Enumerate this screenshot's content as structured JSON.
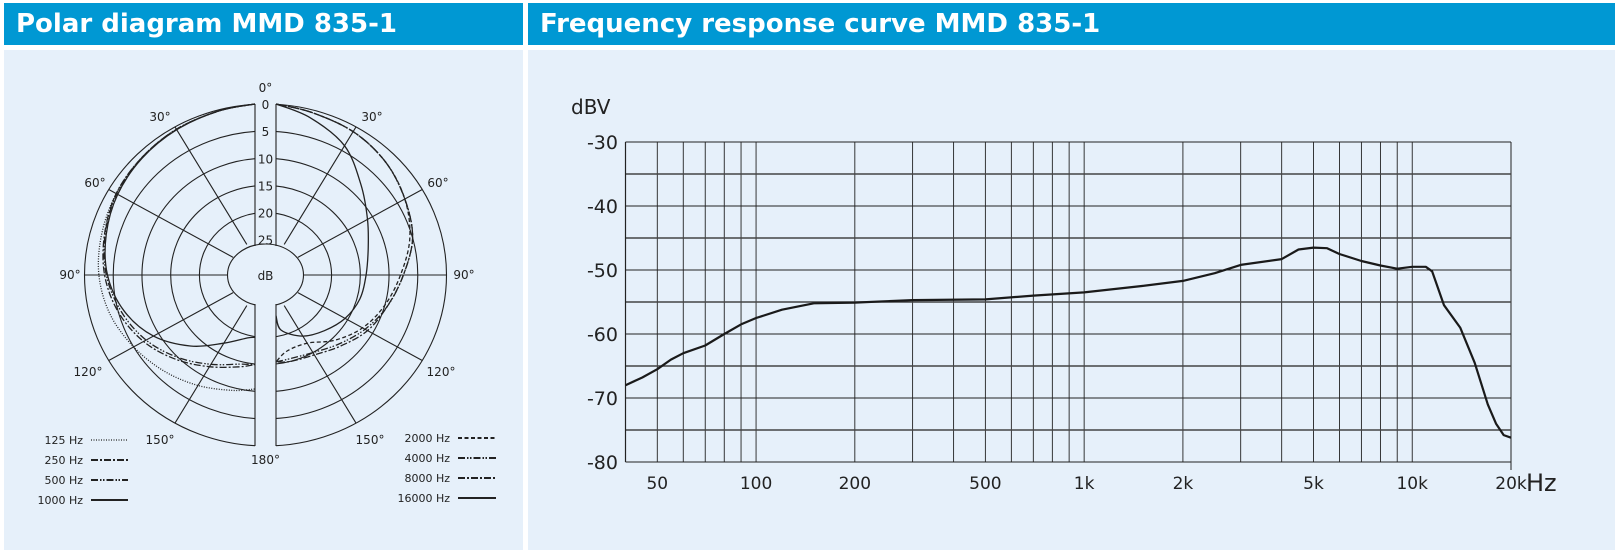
{
  "polar": {
    "title": "Polar diagram MMD 835-1",
    "unit_label": "dB",
    "ring_labels": [
      "0",
      "5",
      "10",
      "15",
      "20",
      "25"
    ],
    "angle_labels": {
      "a0": "0°",
      "a30": "30°",
      "a60": "60°",
      "a90": "90°",
      "a120": "120°",
      "a150": "150°",
      "a180": "180°"
    },
    "legend_left": [
      {
        "label": "125 Hz",
        "style": "dotted"
      },
      {
        "label": "250 Hz",
        "style": "dash-dot"
      },
      {
        "label": "500 Hz",
        "style": "dash-dot-dot"
      },
      {
        "label": "1000 Hz",
        "style": "solid"
      }
    ],
    "legend_right": [
      {
        "label": "2000 Hz",
        "style": "dashed"
      },
      {
        "label": "4000 Hz",
        "style": "dash-dot-dot"
      },
      {
        "label": "8000 Hz",
        "style": "dash-dot"
      },
      {
        "label": "16000 Hz",
        "style": "solid"
      }
    ]
  },
  "chart_data": [
    {
      "type": "polar",
      "title": "Polar diagram MMD 835-1",
      "unit": "dB",
      "radial_range_db": [
        0,
        25
      ],
      "angles_deg": [
        0,
        15,
        30,
        45,
        60,
        75,
        90,
        105,
        120,
        135,
        150,
        165,
        180
      ],
      "series": [
        {
          "name": "125 Hz",
          "side": "left",
          "values": [
            0,
            0.2,
            0.5,
            1,
            1.5,
            2,
            2.5,
            3.5,
            5,
            6.5,
            8,
            9.5,
            10.5
          ]
        },
        {
          "name": "250 Hz",
          "side": "left",
          "values": [
            0,
            0.2,
            0.5,
            1,
            1.5,
            2.5,
            3.5,
            5,
            7,
            9.5,
            12,
            14,
            15
          ]
        },
        {
          "name": "500 Hz",
          "side": "left",
          "values": [
            0,
            0.2,
            0.5,
            1,
            1.6,
            2.6,
            3.8,
            5.5,
            7.5,
            10,
            12.5,
            14.5,
            15
          ]
        },
        {
          "name": "1000 Hz",
          "side": "left",
          "values": [
            0,
            0.2,
            0.6,
            1.1,
            1.8,
            2.8,
            4,
            6,
            9,
            13,
            17,
            19.5,
            20
          ]
        },
        {
          "name": "2000 Hz",
          "side": "right",
          "values": [
            0,
            0.5,
            1,
            2,
            3.5,
            5.5,
            8,
            10,
            12,
            14.5,
            17,
            17,
            15.5
          ]
        },
        {
          "name": "4000 Hz",
          "side": "right",
          "values": [
            0,
            0.5,
            1,
            2,
            3.5,
            5,
            7.5,
            9.5,
            11.5,
            13.5,
            15,
            15.5,
            15.5
          ]
        },
        {
          "name": "8000 Hz",
          "side": "right",
          "values": [
            0,
            0.5,
            1,
            2,
            3.5,
            5,
            7.5,
            9.5,
            11,
            13,
            14.5,
            15,
            15.5
          ]
        },
        {
          "name": "16000 Hz",
          "side": "right",
          "values": [
            0,
            1.5,
            4,
            8,
            11,
            13,
            14,
            14.5,
            15.5,
            17,
            18.5,
            21,
            24
          ]
        }
      ]
    },
    {
      "type": "line",
      "title": "Frequency response curve MMD 835-1",
      "xlabel": "Hz",
      "ylabel": "dBV",
      "xscale": "log",
      "xlim": [
        40,
        20000
      ],
      "ylim": [
        -80,
        -30
      ],
      "grid": true,
      "x_tick_labels": [
        {
          "v": 50,
          "t": "50"
        },
        {
          "v": 100,
          "t": "100"
        },
        {
          "v": 200,
          "t": "200"
        },
        {
          "v": 500,
          "t": "500"
        },
        {
          "v": 1000,
          "t": "1k"
        },
        {
          "v": 2000,
          "t": "2k"
        },
        {
          "v": 5000,
          "t": "5k"
        },
        {
          "v": 10000,
          "t": "10k"
        },
        {
          "v": 20000,
          "t": "20k"
        }
      ],
      "y_tick_labels": [
        "-30",
        "-40",
        "-50",
        "-60",
        "-70",
        "-80"
      ],
      "x": [
        40,
        45,
        50,
        55,
        60,
        70,
        80,
        90,
        100,
        120,
        150,
        200,
        300,
        500,
        700,
        1000,
        1500,
        2000,
        2500,
        3000,
        4000,
        4500,
        5000,
        5500,
        6000,
        7000,
        8000,
        9000,
        10000,
        11000,
        11500,
        12500,
        14000,
        15500,
        17000,
        18000,
        19000,
        20000
      ],
      "y": [
        -68,
        -66.8,
        -65.5,
        -64,
        -63,
        -61.8,
        -60,
        -58.5,
        -57.5,
        -56.2,
        -55.2,
        -55.1,
        -54.7,
        -54.6,
        -54,
        -53.5,
        -52.5,
        -51.7,
        -50.5,
        -49.2,
        -48.3,
        -46.8,
        -46.5,
        -46.6,
        -47.5,
        -48.6,
        -49.3,
        -49.8,
        -49.5,
        -49.5,
        -50.2,
        -55.5,
        -59,
        -64.5,
        -71,
        -74,
        -75.8,
        -76.2
      ]
    }
  ]
}
